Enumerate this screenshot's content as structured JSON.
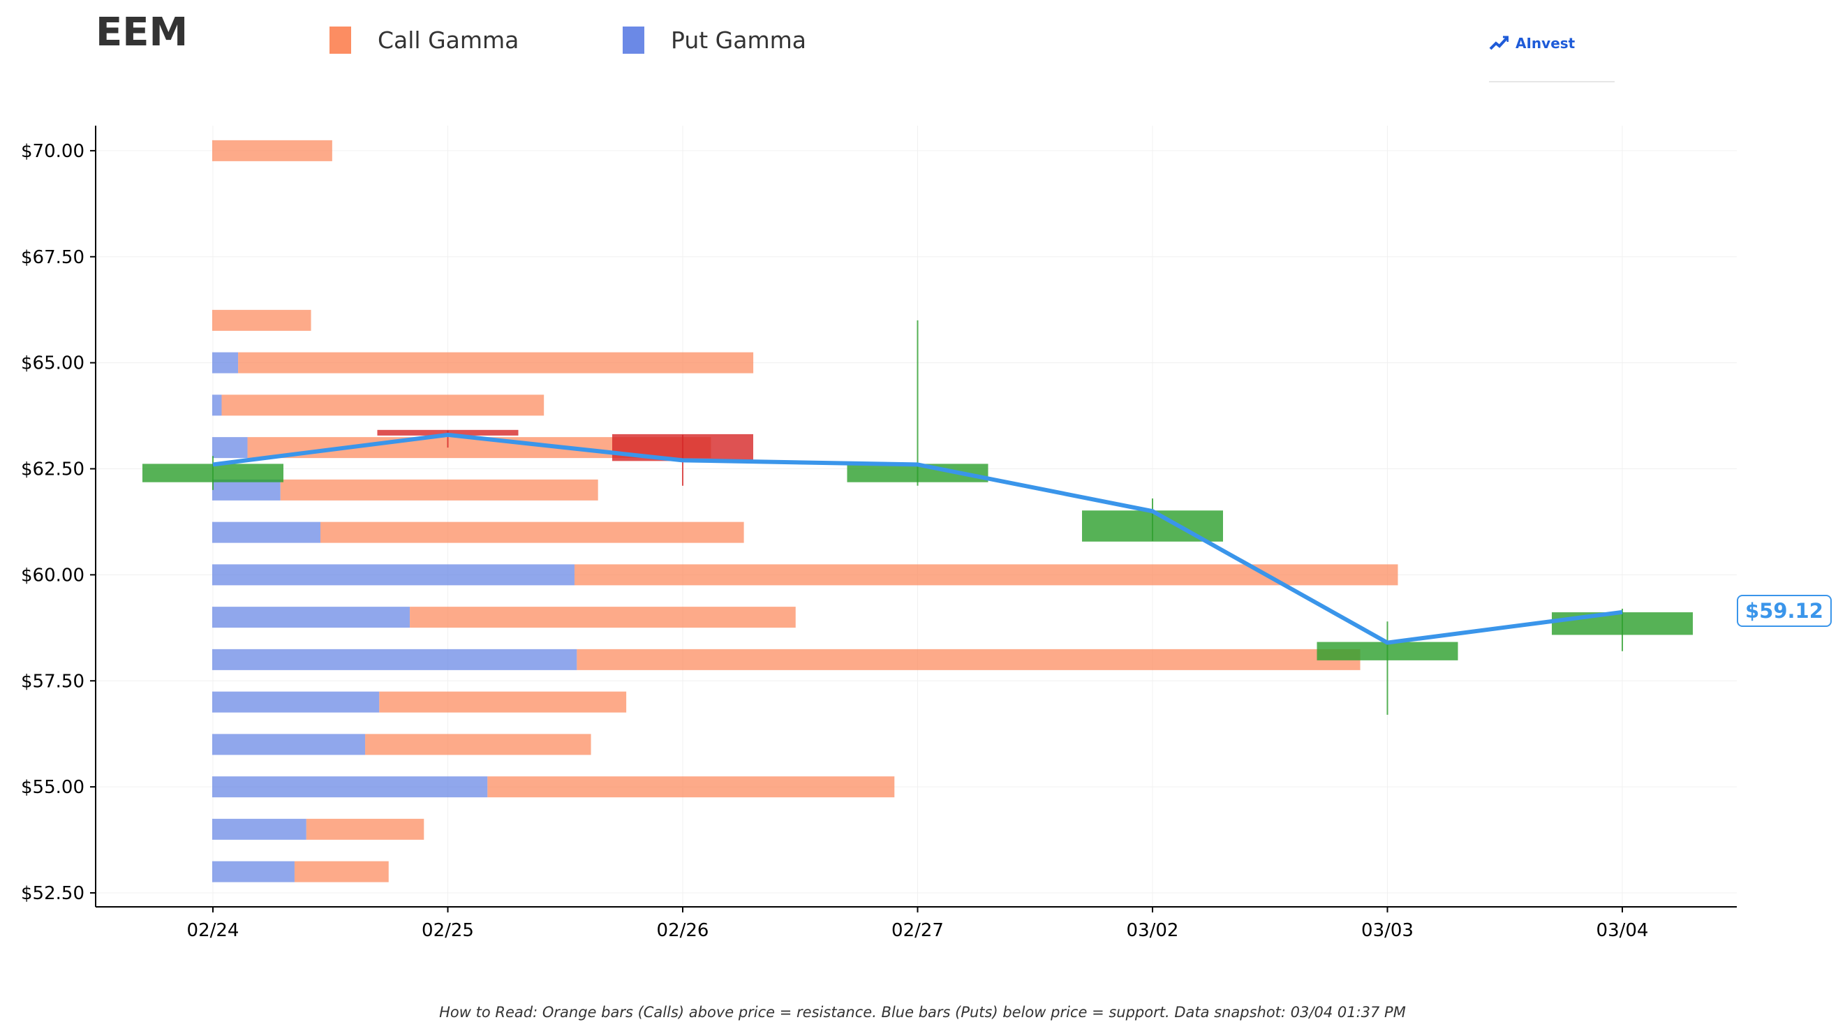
{
  "header": {
    "ticker": "EEM",
    "legend": [
      {
        "label": "Call Gamma",
        "color": "#fc8d62"
      },
      {
        "label": "Put Gamma",
        "color": "#6b89e6"
      }
    ],
    "brand": "AInvest"
  },
  "footnote": "How to Read: Orange bars (Calls) above price = resistance. Blue bars (Puts) below price = support. Data snapshot: 03/04 01:37 PM",
  "last_price_label": "$59.12",
  "chart_data": {
    "type": "bar",
    "title": "EEM",
    "xlabel": "",
    "ylabel": "",
    "ylim": [
      52.2,
      71.2
    ],
    "y_ticks": [
      "$52.50",
      "$55.00",
      "$57.50",
      "$60.00",
      "$62.50",
      "$65.00",
      "$67.50",
      "$70.00"
    ],
    "y_tick_values": [
      52.5,
      55,
      57.5,
      60,
      62.5,
      65,
      67.5,
      70
    ],
    "x_ticks": [
      "02/24",
      "02/25",
      "02/26",
      "02/27",
      "03/02",
      "03/03",
      "03/04"
    ],
    "grid": true,
    "legend_position": "top",
    "gamma_strikes": [
      70,
      66,
      65,
      64,
      63,
      62,
      61,
      60,
      59,
      58,
      57,
      56,
      55,
      54,
      53
    ],
    "call_gamma": [
      0.51,
      0.42,
      2.19,
      1.37,
      1.97,
      1.35,
      1.8,
      3.5,
      1.64,
      3.33,
      1.05,
      0.96,
      1.73,
      0.5,
      0.4
    ],
    "put_gamma": [
      0,
      0,
      0.11,
      0.04,
      0.15,
      0.29,
      0.46,
      1.54,
      0.84,
      1.55,
      0.71,
      0.65,
      1.17,
      0.4,
      0.35
    ],
    "candles": [
      {
        "date": "02/24",
        "open": 62.2,
        "high": 62.8,
        "low": 62.0,
        "close": 62.6
      },
      {
        "date": "02/25",
        "open": 63.4,
        "high": 63.4,
        "low": 63.0,
        "close": 63.3
      },
      {
        "date": "02/26",
        "open": 63.3,
        "high": 63.3,
        "low": 62.1,
        "close": 62.7
      },
      {
        "date": "02/27",
        "open": 62.2,
        "high": 66.0,
        "low": 62.1,
        "close": 62.6
      },
      {
        "date": "03/02",
        "open": 60.8,
        "high": 61.8,
        "low": 60.8,
        "close": 61.5
      },
      {
        "date": "03/03",
        "open": 58.0,
        "high": 58.9,
        "low": 56.7,
        "close": 58.4
      },
      {
        "date": "03/04",
        "open": 58.6,
        "high": 59.2,
        "low": 58.2,
        "close": 59.1
      }
    ],
    "price_line": [
      62.6,
      63.3,
      62.7,
      62.6,
      61.5,
      58.4,
      59.12
    ],
    "colors": {
      "call": "#fc8d62",
      "put": "#6b89e6",
      "up": "#2ca02c",
      "down": "#d62728",
      "line": "#3a95ea"
    }
  }
}
